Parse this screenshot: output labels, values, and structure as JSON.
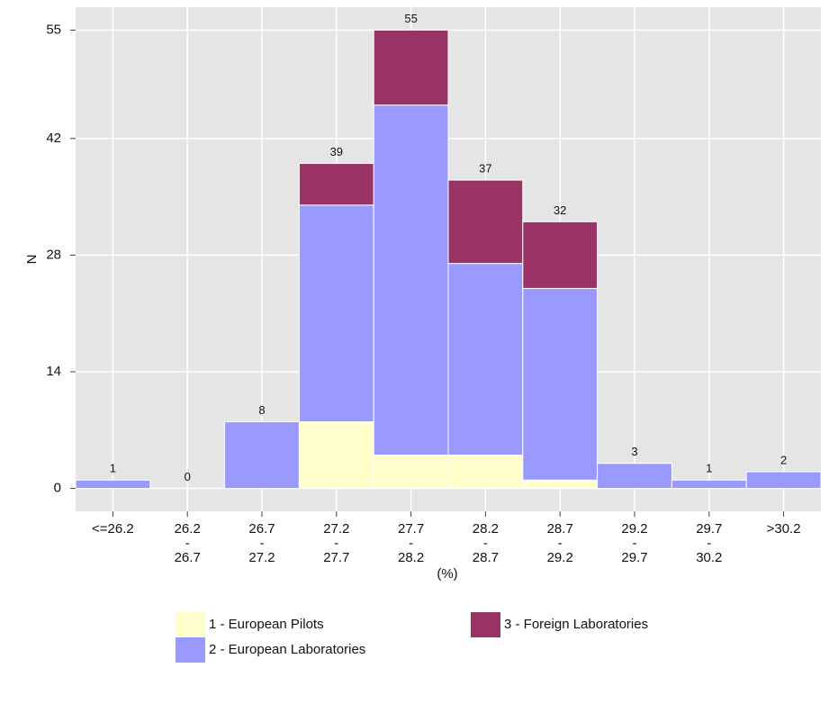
{
  "chart_data": {
    "type": "stacked_bar",
    "categories": [
      "<=26.2",
      "26.2\n-\n26.7",
      "26.7\n-\n27.2",
      "27.2\n-\n27.7",
      "27.7\n-\n28.2",
      "28.2\n-\n28.7",
      "28.7\n-\n29.2",
      "29.2\n-\n29.7",
      "29.7\n-\n30.2",
      ">30.2"
    ],
    "series": [
      {
        "name": "1 - European Pilots",
        "color": "#ffffcc",
        "values": [
          0,
          0,
          0,
          8,
          4,
          4,
          1,
          0,
          0,
          0
        ]
      },
      {
        "name": "2 - European Laboratories",
        "color": "#9999ff",
        "values": [
          1,
          0,
          8,
          26,
          42,
          23,
          23,
          3,
          1,
          2
        ]
      },
      {
        "name": "3 - Foreign Laboratories",
        "color": "#993366",
        "values": [
          0,
          0,
          0,
          5,
          9,
          10,
          8,
          0,
          0,
          0
        ]
      }
    ],
    "totals": [
      1,
      0,
      8,
      39,
      55,
      37,
      32,
      3,
      1,
      2
    ],
    "xlabel": "(%)",
    "ylabel": "N",
    "ylim": [
      -2.75,
      57.75
    ],
    "yticks": [
      0,
      14,
      28,
      42,
      55
    ],
    "grid": true,
    "legend": "bottom"
  }
}
